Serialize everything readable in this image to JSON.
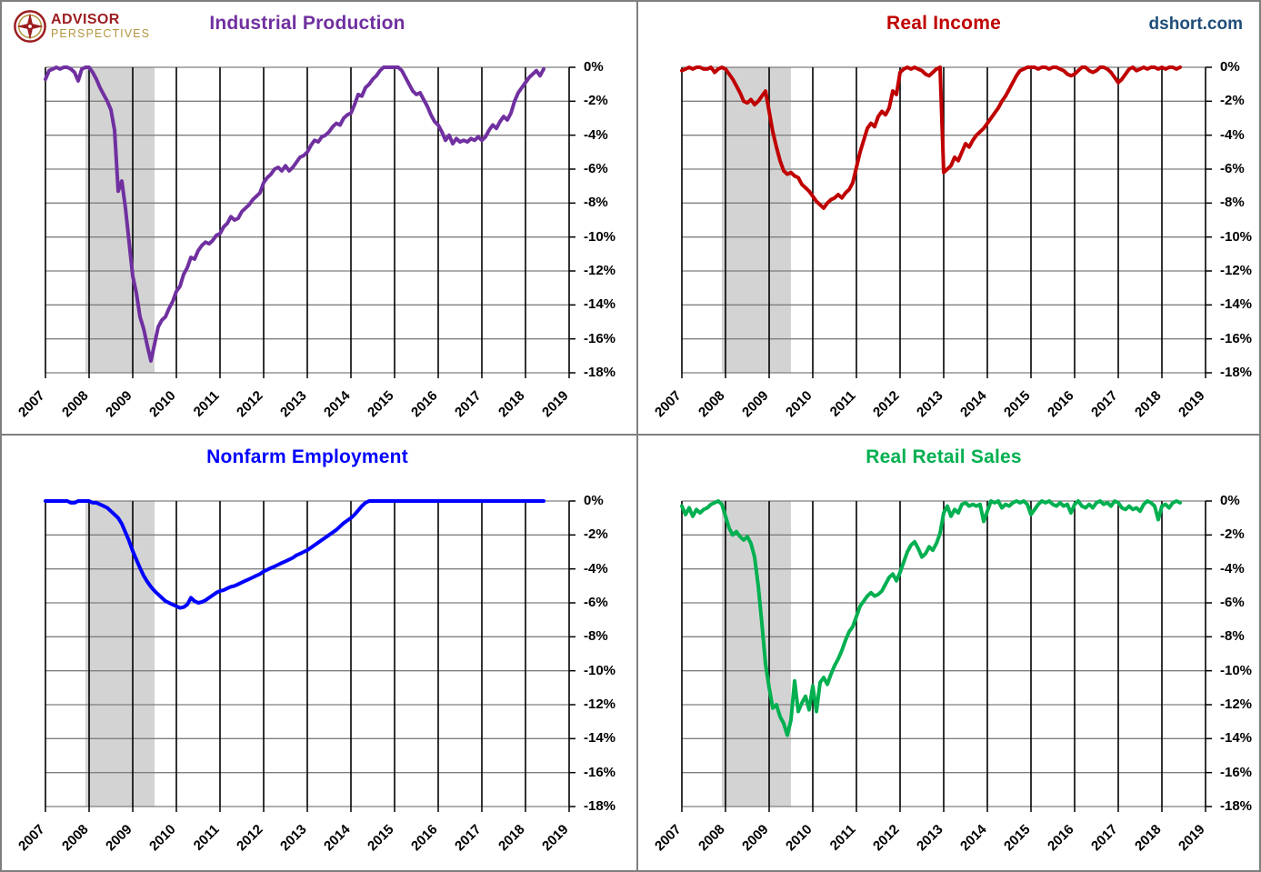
{
  "branding": {
    "logo_line1": "ADVISOR",
    "logo_line2": "PERSPECTIVES",
    "site": "dshort.com"
  },
  "axes": {
    "x_tick_labels": [
      "2007",
      "2008",
      "2009",
      "2010",
      "2011",
      "2012",
      "2013",
      "2014",
      "2015",
      "2016",
      "2017",
      "2018",
      "2019"
    ],
    "y_tick_labels": [
      "0%",
      "-2%",
      "-4%",
      "-6%",
      "-8%",
      "-10%",
      "-12%",
      "-14%",
      "-16%",
      "-18%"
    ],
    "x_range": [
      2007,
      2019
    ],
    "ylim": [
      -18,
      0
    ],
    "grid": "on",
    "vertical_gridline_color": "#000000",
    "horizontal_gridline_color": "#7f7f7f"
  },
  "recession_band": {
    "start": 2007.917,
    "end": 2009.5,
    "color": "#d3d3d3",
    "meaning": "recession"
  },
  "chart_data": [
    {
      "type": "line",
      "title": "Industrial Production",
      "color": "#7030a0",
      "x_start": 2007.0,
      "x_step_months": 1,
      "xlabel": "",
      "ylabel": "",
      "ylim": [
        -18,
        0
      ],
      "values": [
        -0.7,
        -0.2,
        -0.1,
        0,
        -0.1,
        0,
        0,
        -0.1,
        -0.3,
        -0.8,
        -0.1,
        0,
        0,
        -0.3,
        -0.7,
        -1.2,
        -1.6,
        -2.0,
        -2.5,
        -3.7,
        -7.3,
        -6.7,
        -8.3,
        -10.3,
        -12.3,
        -13.3,
        -14.7,
        -15.4,
        -16.4,
        -17.3,
        -16.3,
        -15.3,
        -14.9,
        -14.7,
        -14.2,
        -13.8,
        -13.2,
        -12.9,
        -12.2,
        -11.8,
        -11.2,
        -11.3,
        -10.8,
        -10.5,
        -10.3,
        -10.4,
        -10.2,
        -9.9,
        -9.8,
        -9.4,
        -9.2,
        -8.8,
        -9.0,
        -8.9,
        -8.5,
        -8.3,
        -8.1,
        -7.8,
        -7.6,
        -7.4,
        -6.8,
        -6.5,
        -6.3,
        -6.0,
        -5.9,
        -6.1,
        -5.8,
        -6.1,
        -5.9,
        -5.6,
        -5.3,
        -5.2,
        -5.0,
        -4.6,
        -4.3,
        -4.4,
        -4.1,
        -4.0,
        -3.8,
        -3.5,
        -3.3,
        -3.4,
        -3.0,
        -2.8,
        -2.7,
        -2.2,
        -1.6,
        -1.7,
        -1.2,
        -1.0,
        -0.7,
        -0.5,
        -0.2,
        0,
        0,
        0,
        0,
        0,
        -0.2,
        -0.6,
        -1.0,
        -1.4,
        -1.6,
        -1.5,
        -1.9,
        -2.3,
        -2.8,
        -3.2,
        -3.4,
        -3.8,
        -4.3,
        -4.0,
        -4.5,
        -4.2,
        -4.4,
        -4.3,
        -4.4,
        -4.2,
        -4.3,
        -4.1,
        -4.3,
        -4.1,
        -3.7,
        -3.4,
        -3.6,
        -3.2,
        -2.9,
        -3.1,
        -2.7,
        -2.0,
        -1.5,
        -1.2,
        -0.9,
        -0.6,
        -0.4,
        -0.2,
        -0.5,
        -0.1
      ]
    },
    {
      "type": "line",
      "title": "Real Income",
      "color": "#c00000",
      "x_start": 2007.0,
      "x_step_months": 1,
      "xlabel": "",
      "ylabel": "",
      "ylim": [
        -18,
        0
      ],
      "values": [
        -0.2,
        -0.1,
        0,
        -0.1,
        0,
        0,
        -0.1,
        -0.1,
        0,
        -0.3,
        -0.1,
        0,
        -0.1,
        -0.4,
        -0.7,
        -1.1,
        -1.5,
        -2.0,
        -2.1,
        -1.9,
        -2.2,
        -2.0,
        -1.7,
        -1.4,
        -2.6,
        -3.8,
        -4.7,
        -5.5,
        -6.1,
        -6.3,
        -6.2,
        -6.4,
        -6.5,
        -6.9,
        -7.1,
        -7.3,
        -7.6,
        -7.9,
        -8.1,
        -8.3,
        -8.0,
        -7.8,
        -7.7,
        -7.5,
        -7.7,
        -7.4,
        -7.2,
        -6.8,
        -5.9,
        -5.0,
        -4.3,
        -3.6,
        -3.3,
        -3.5,
        -2.9,
        -2.6,
        -2.8,
        -2.4,
        -1.4,
        -1.6,
        -0.3,
        -0.1,
        0,
        -0.1,
        0,
        -0.1,
        -0.2,
        -0.4,
        -0.5,
        -0.3,
        -0.1,
        0,
        -6.2,
        -6.0,
        -5.8,
        -5.3,
        -5.5,
        -5.0,
        -4.5,
        -4.7,
        -4.3,
        -4.0,
        -3.8,
        -3.6,
        -3.3,
        -3.0,
        -2.7,
        -2.4,
        -2.0,
        -1.7,
        -1.3,
        -0.9,
        -0.5,
        -0.2,
        -0.1,
        0,
        0,
        0,
        -0.1,
        0,
        0,
        -0.1,
        0,
        0,
        -0.1,
        -0.2,
        -0.4,
        -0.5,
        -0.4,
        -0.2,
        0,
        0,
        -0.2,
        -0.3,
        -0.2,
        0,
        0,
        -0.1,
        -0.3,
        -0.6,
        -0.9,
        -0.7,
        -0.4,
        -0.1,
        0,
        -0.2,
        -0.1,
        0,
        -0.1,
        0,
        0,
        -0.1,
        0,
        -0.1,
        0,
        0,
        -0.1,
        0
      ]
    },
    {
      "type": "line",
      "title": "Nonfarm Employment",
      "color": "#0000ff",
      "x_start": 2007.0,
      "x_step_months": 1,
      "xlabel": "",
      "ylabel": "",
      "ylim": [
        -18,
        0
      ],
      "values": [
        0,
        0,
        0,
        0,
        0,
        0,
        0,
        -0.1,
        -0.1,
        0,
        0,
        0,
        0,
        -0.1,
        -0.1,
        -0.2,
        -0.3,
        -0.4,
        -0.6,
        -0.8,
        -1.0,
        -1.35,
        -1.85,
        -2.35,
        -2.95,
        -3.45,
        -3.95,
        -4.4,
        -4.75,
        -5.05,
        -5.3,
        -5.5,
        -5.7,
        -5.9,
        -6.0,
        -6.1,
        -6.2,
        -6.3,
        -6.25,
        -6.1,
        -5.7,
        -5.9,
        -6.0,
        -5.95,
        -5.85,
        -5.7,
        -5.55,
        -5.4,
        -5.3,
        -5.25,
        -5.15,
        -5.05,
        -5.0,
        -4.9,
        -4.8,
        -4.7,
        -4.6,
        -4.5,
        -4.4,
        -4.3,
        -4.15,
        -4.05,
        -3.95,
        -3.85,
        -3.75,
        -3.65,
        -3.55,
        -3.45,
        -3.35,
        -3.2,
        -3.1,
        -3.0,
        -2.9,
        -2.75,
        -2.6,
        -2.45,
        -2.3,
        -2.15,
        -2.0,
        -1.85,
        -1.7,
        -1.5,
        -1.3,
        -1.15,
        -1.0,
        -0.8,
        -0.55,
        -0.3,
        -0.1,
        0,
        0,
        0,
        0,
        0,
        0,
        0,
        0,
        0,
        0,
        0,
        0,
        0,
        0,
        0,
        0,
        0,
        0,
        0,
        0,
        0,
        0,
        0,
        0,
        0,
        0,
        0,
        0,
        0,
        0,
        0,
        0,
        0,
        0,
        0,
        0,
        0,
        0,
        0,
        0,
        0,
        0,
        0,
        0,
        0,
        0,
        0,
        0,
        0
      ]
    },
    {
      "type": "line",
      "title": "Real Retail Sales",
      "color": "#00b050",
      "x_start": 2007.0,
      "x_step_months": 1,
      "xlabel": "",
      "ylabel": "",
      "ylim": [
        -18,
        0
      ],
      "values": [
        -0.3,
        -0.8,
        -0.4,
        -0.9,
        -0.5,
        -0.7,
        -0.5,
        -0.4,
        -0.2,
        -0.1,
        0,
        -0.2,
        -0.9,
        -1.6,
        -2.0,
        -1.8,
        -2.1,
        -2.3,
        -2.1,
        -2.5,
        -3.3,
        -5.0,
        -7.2,
        -9.6,
        -11.0,
        -12.2,
        -12.0,
        -12.7,
        -13.1,
        -13.8,
        -12.9,
        -10.6,
        -12.4,
        -11.9,
        -11.5,
        -12.3,
        -10.9,
        -12.4,
        -10.7,
        -10.4,
        -10.8,
        -10.2,
        -9.7,
        -9.3,
        -8.8,
        -8.2,
        -7.7,
        -7.4,
        -6.8,
        -6.2,
        -5.9,
        -5.6,
        -5.4,
        -5.6,
        -5.5,
        -5.3,
        -4.9,
        -4.5,
        -4.3,
        -4.7,
        -4.2,
        -3.6,
        -3.0,
        -2.6,
        -2.4,
        -2.8,
        -3.3,
        -3.1,
        -2.7,
        -2.9,
        -2.5,
        -1.9,
        -0.7,
        -0.3,
        -0.9,
        -0.5,
        -0.7,
        -0.2,
        -0.1,
        -0.3,
        -0.2,
        -0.3,
        -0.2,
        -1.2,
        -0.6,
        0,
        -0.1,
        0,
        -0.4,
        -0.2,
        -0.3,
        -0.1,
        0,
        -0.1,
        0,
        -0.2,
        -0.8,
        -0.5,
        -0.2,
        0,
        -0.1,
        0,
        -0.2,
        -0.3,
        -0.1,
        -0.3,
        -0.2,
        -0.7,
        -0.2,
        0,
        -0.3,
        -0.4,
        -0.2,
        -0.4,
        -0.1,
        0,
        -0.2,
        -0.1,
        -0.3,
        0,
        -0.1,
        -0.4,
        -0.5,
        -0.3,
        -0.5,
        -0.4,
        -0.6,
        -0.2,
        0,
        -0.1,
        -0.3,
        -1.1,
        -0.3,
        -0.2,
        -0.4,
        -0.1,
        0,
        -0.1
      ]
    }
  ]
}
